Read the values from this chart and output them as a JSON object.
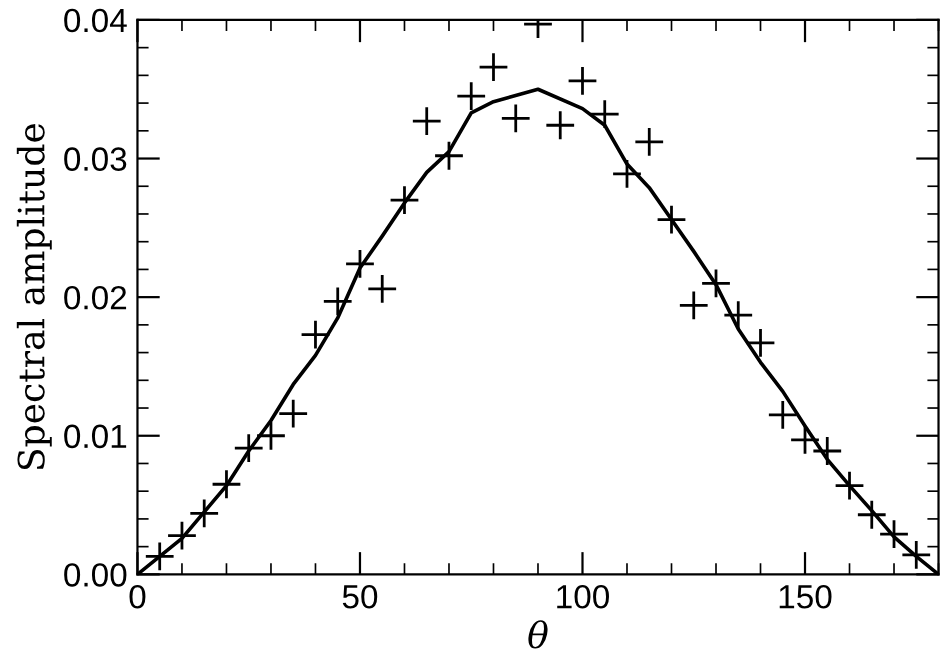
{
  "chart_data": {
    "type": "scatter",
    "xlabel": "θ",
    "ylabel": "Spectral amplitude",
    "xlim": [
      0,
      180
    ],
    "ylim": [
      0,
      0.04
    ],
    "xticks": [
      0,
      50,
      100,
      150
    ],
    "yticks": [
      {
        "value": 0,
        "label": "0.00"
      },
      {
        "value": 0.01,
        "label": "0.01"
      },
      {
        "value": 0.02,
        "label": "0.02"
      },
      {
        "value": 0.03,
        "label": "0.03"
      },
      {
        "value": 0.04,
        "label": "0.04"
      }
    ],
    "grid": false,
    "series": [
      {
        "color": "#000000",
        "marker": "cross",
        "x": [
          5,
          10,
          15,
          20,
          25,
          30,
          35,
          40,
          45,
          50,
          55,
          60,
          65,
          70,
          75,
          80,
          85,
          90,
          95,
          100,
          105,
          110,
          115,
          120,
          125,
          130,
          135,
          140,
          145,
          150,
          155,
          160,
          165,
          170,
          175
        ],
        "values": [
          0.0013,
          0.0028,
          0.0044,
          0.0065,
          0.0091,
          0.01,
          0.0116,
          0.0173,
          0.0197,
          0.0224,
          0.0206,
          0.027,
          0.0327,
          0.0302,
          0.0345,
          0.0366,
          0.0329,
          0.0397,
          0.0324,
          0.0356,
          0.0332,
          0.0289,
          0.0312,
          0.0256,
          0.0194,
          0.021,
          0.0187,
          0.0167,
          0.0115,
          0.0097,
          0.0089,
          0.0064,
          0.0043,
          0.0029,
          0.0014
        ]
      },
      {
        "type": "line",
        "color": "#000000",
        "marker": "none",
        "line_style": "solid",
        "x": [
          0,
          10,
          20,
          25,
          30,
          35,
          40,
          45,
          50,
          55,
          60,
          65,
          70,
          75,
          80,
          90,
          100,
          105,
          110,
          115,
          120,
          125,
          130,
          135,
          140,
          145,
          150,
          155,
          160,
          165,
          170,
          175,
          180
        ],
        "values": [
          0,
          0.0026,
          0.0064,
          0.0089,
          0.0111,
          0.0137,
          0.0158,
          0.0185,
          0.0221,
          0.0244,
          0.0268,
          0.029,
          0.0305,
          0.0333,
          0.0341,
          0.035,
          0.0336,
          0.0324,
          0.0296,
          0.0279,
          0.0256,
          0.0233,
          0.0209,
          0.0177,
          0.0153,
          0.0132,
          0.0107,
          0.0083,
          0.0064,
          0.0046,
          0.0027,
          0.0013,
          0
        ]
      }
    ]
  }
}
